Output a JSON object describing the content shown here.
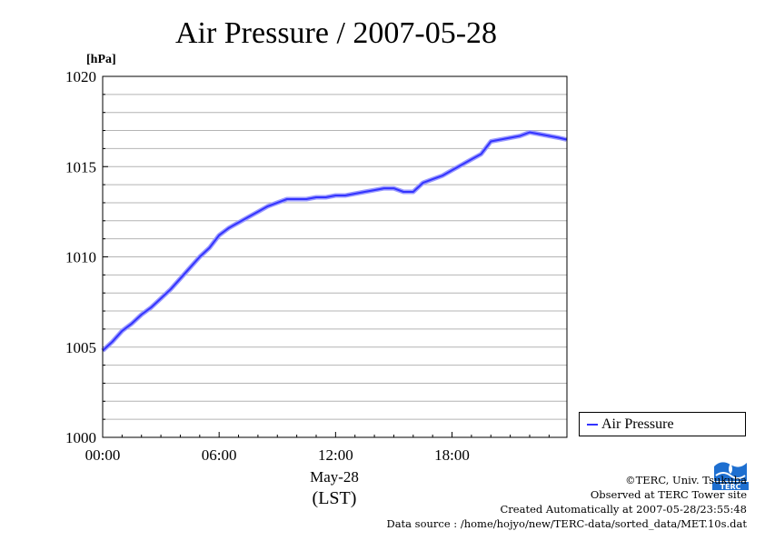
{
  "chart_data": {
    "type": "line",
    "title": "Air Pressure / 2007-05-28",
    "unit_label": "[hPa]",
    "xlabel_date": "May-28",
    "xlabel_zone": "(LST)",
    "x_tick_labels": [
      "00:00",
      "06:00",
      "12:00",
      "18:00"
    ],
    "y_tick_labels": [
      "1000",
      "1005",
      "1010",
      "1015",
      "1020"
    ],
    "ylim": [
      1000,
      1020
    ],
    "xlim_hours": [
      0,
      23.92
    ],
    "grid": true,
    "legend_position": "bottom-right, outside plot",
    "series": [
      {
        "name": "Air Pressure",
        "color": "#3333ff",
        "x_hours": [
          0,
          0.5,
          1,
          1.5,
          2,
          2.5,
          3,
          3.5,
          4,
          4.5,
          5,
          5.5,
          6,
          6.5,
          7,
          7.5,
          8,
          8.5,
          9,
          9.5,
          10,
          10.5,
          11,
          11.5,
          12,
          12.5,
          13,
          13.5,
          14,
          14.5,
          15,
          15.5,
          16,
          16.5,
          17,
          17.5,
          18,
          18.5,
          19,
          19.5,
          20,
          20.5,
          21,
          21.5,
          22,
          22.5,
          23,
          23.5,
          23.9
        ],
        "values": [
          1004.8,
          1005.3,
          1005.9,
          1006.3,
          1006.8,
          1007.2,
          1007.7,
          1008.2,
          1008.8,
          1009.4,
          1010.0,
          1010.5,
          1011.2,
          1011.6,
          1011.9,
          1012.2,
          1012.5,
          1012.8,
          1013.0,
          1013.2,
          1013.2,
          1013.2,
          1013.3,
          1013.3,
          1013.4,
          1013.4,
          1013.5,
          1013.6,
          1013.7,
          1013.8,
          1013.8,
          1013.6,
          1013.6,
          1014.1,
          1014.3,
          1014.5,
          1014.8,
          1015.1,
          1015.4,
          1015.7,
          1016.4,
          1016.5,
          1016.6,
          1016.7,
          1016.9,
          1016.8,
          1016.7,
          1016.6,
          1016.5
        ]
      }
    ]
  },
  "legend": {
    "label": "Air Pressure"
  },
  "credits": {
    "copyright": "©TERC, Univ. Tsukuba",
    "observed": "Observed at TERC Tower site",
    "created": "Created Automatically at 2007-05-28/23:55:48",
    "source": "Data source : /home/hojyo/new/TERC-data/sorted_data/MET.10s.dat"
  },
  "logo": {
    "text": "TERC",
    "color": "#1e6fd0"
  }
}
